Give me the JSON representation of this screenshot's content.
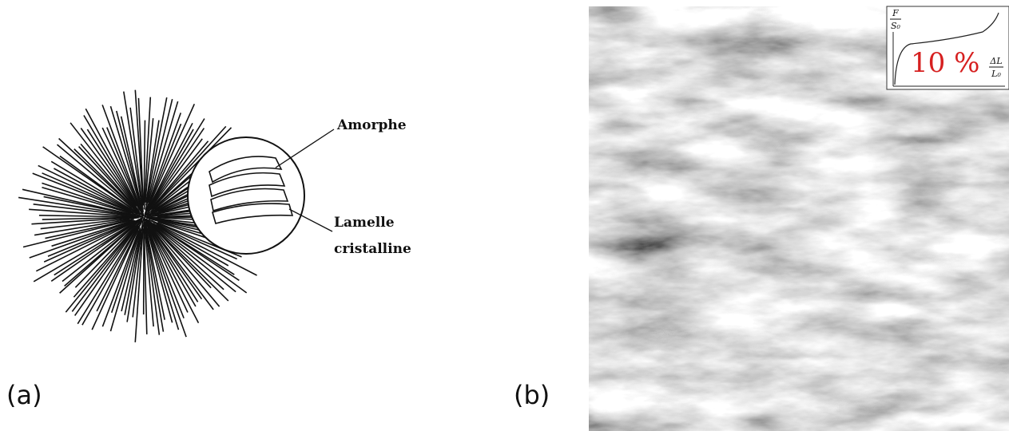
{
  "panel_a": {
    "label": "(a)",
    "annotations": [
      "Amorphe",
      "Lamelle",
      "cristalline"
    ]
  },
  "panel_b": {
    "label": "(b)",
    "inset": {
      "y_label": {
        "numerator": "F",
        "denominator": "S₀"
      },
      "x_label": {
        "numerator": "ΔL",
        "denominator": "L₀"
      },
      "strain": "10 %"
    }
  }
}
